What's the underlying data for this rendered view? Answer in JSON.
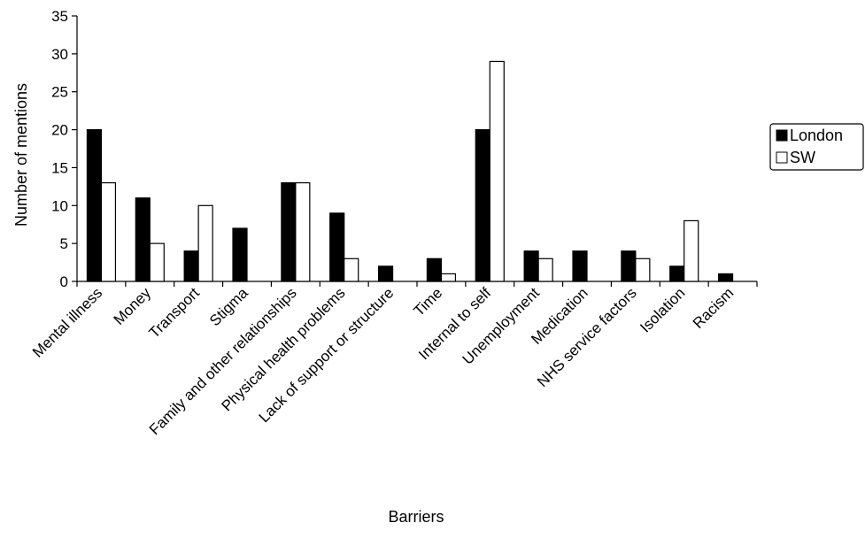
{
  "chart_data": {
    "type": "bar",
    "title": "",
    "xlabel": "Barriers",
    "ylabel": "Number of mentions",
    "ylim": [
      0,
      35
    ],
    "yticks": [
      0,
      5,
      10,
      15,
      20,
      25,
      30,
      35
    ],
    "grid": false,
    "legend_position": "right",
    "categories": [
      "Mental illness",
      "Money",
      "Transport",
      "Stigma",
      "Family and other relationships",
      "Physical health problems",
      "Lack of support or structure",
      "Time",
      "Internal to self",
      "Unemployment",
      "Medication",
      "NHS service factors",
      "Isolation",
      "Racism"
    ],
    "series": [
      {
        "name": "London",
        "color": "#000000",
        "values": [
          20,
          11,
          4,
          7,
          13,
          9,
          2,
          3,
          20,
          4,
          4,
          4,
          2,
          1
        ]
      },
      {
        "name": "SW",
        "color": "#ffffff",
        "values": [
          13,
          5,
          10,
          0,
          13,
          3,
          0,
          1,
          29,
          3,
          0,
          3,
          8,
          0
        ]
      }
    ]
  }
}
